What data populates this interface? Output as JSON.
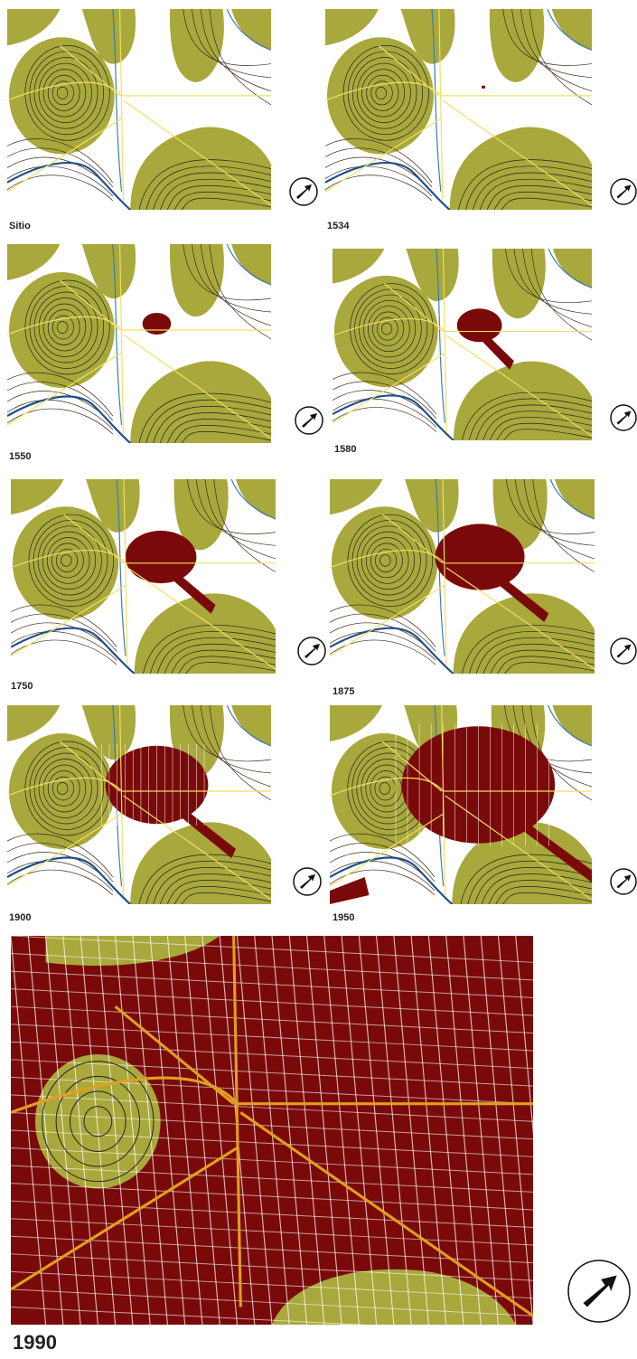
{
  "panels": [
    {
      "label": "Sitio"
    },
    {
      "label": "1534"
    },
    {
      "label": "1550"
    },
    {
      "label": "1580"
    },
    {
      "label": "1750"
    },
    {
      "label": "1875"
    },
    {
      "label": "1900"
    },
    {
      "label": "1950"
    },
    {
      "label": "1990"
    }
  ]
}
